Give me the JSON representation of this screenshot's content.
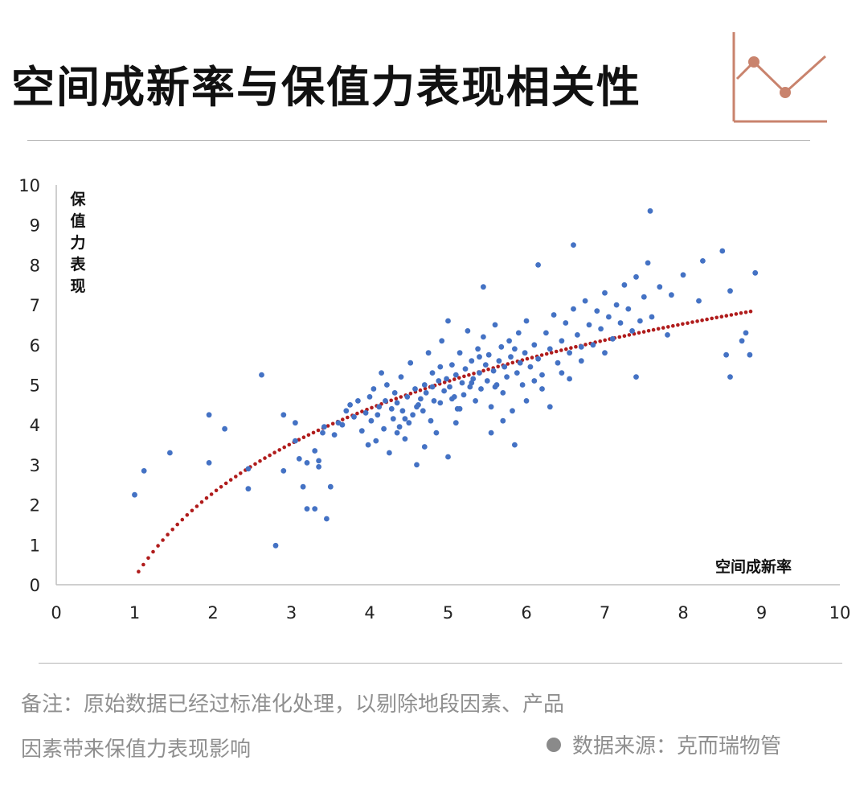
{
  "header": {
    "title": "空间成新率与保值力表现相关性",
    "logo_icon": "line-chart-icon"
  },
  "colors": {
    "points": "#4472c4",
    "trend": "#b01c1c",
    "accent": "#c9836d",
    "muted": "#8f8f8f"
  },
  "footer": {
    "note": "备注：原始数据已经过标准化处理，以剔除地段因素、产品因素带来保值力表现影响",
    "source": "数据来源：克而瑞物管"
  },
  "chart_data": {
    "type": "scatter",
    "title": "空间成新率与保值力表现相关性",
    "xlabel": "空间成新率",
    "ylabel": "保值力表现",
    "xlim": [
      0,
      10
    ],
    "ylim": [
      0,
      10
    ],
    "xticks": [
      "0",
      "1",
      "2",
      "3",
      "4",
      "5",
      "6",
      "7",
      "8",
      "9",
      "10"
    ],
    "yticks": [
      "0",
      "1",
      "2",
      "3",
      "4",
      "5",
      "6",
      "7",
      "8",
      "9",
      "10"
    ],
    "grid": false,
    "legend": "none",
    "trendline": {
      "type": "logarithmic",
      "style": "dotted",
      "x_range": [
        1.05,
        8.9
      ]
    },
    "points": [
      [
        1.0,
        2.25
      ],
      [
        1.12,
        2.85
      ],
      [
        1.45,
        3.3
      ],
      [
        1.95,
        4.25
      ],
      [
        1.95,
        3.05
      ],
      [
        2.15,
        3.9
      ],
      [
        2.45,
        2.4
      ],
      [
        2.45,
        2.9
      ],
      [
        2.62,
        5.25
      ],
      [
        2.8,
        0.98
      ],
      [
        2.9,
        4.25
      ],
      [
        2.9,
        2.85
      ],
      [
        3.05,
        4.05
      ],
      [
        3.05,
        3.6
      ],
      [
        3.1,
        3.15
      ],
      [
        3.15,
        2.45
      ],
      [
        3.2,
        3.05
      ],
      [
        3.2,
        1.9
      ],
      [
        3.3,
        1.9
      ],
      [
        3.3,
        3.35
      ],
      [
        3.35,
        3.1
      ],
      [
        3.35,
        2.95
      ],
      [
        3.4,
        3.8
      ],
      [
        3.42,
        3.95
      ],
      [
        3.45,
        1.65
      ],
      [
        3.5,
        2.45
      ],
      [
        3.55,
        3.75
      ],
      [
        3.6,
        4.05
      ],
      [
        3.65,
        4.0
      ],
      [
        3.7,
        4.35
      ],
      [
        3.75,
        4.5
      ],
      [
        3.8,
        4.2
      ],
      [
        3.85,
        4.6
      ],
      [
        3.9,
        3.85
      ],
      [
        3.95,
        4.3
      ],
      [
        3.98,
        3.5
      ],
      [
        4.0,
        4.7
      ],
      [
        4.02,
        4.1
      ],
      [
        4.05,
        4.9
      ],
      [
        4.08,
        3.6
      ],
      [
        4.1,
        4.25
      ],
      [
        4.12,
        4.45
      ],
      [
        4.15,
        5.3
      ],
      [
        4.18,
        3.9
      ],
      [
        4.2,
        4.6
      ],
      [
        4.22,
        5.0
      ],
      [
        4.25,
        3.3
      ],
      [
        4.28,
        4.4
      ],
      [
        4.3,
        4.15
      ],
      [
        4.32,
        4.8
      ],
      [
        4.35,
        4.55
      ],
      [
        4.38,
        3.95
      ],
      [
        4.4,
        5.2
      ],
      [
        4.42,
        4.35
      ],
      [
        4.45,
        3.65
      ],
      [
        4.48,
        4.7
      ],
      [
        4.5,
        4.05
      ],
      [
        4.52,
        5.55
      ],
      [
        4.55,
        4.25
      ],
      [
        4.58,
        4.9
      ],
      [
        4.6,
        3.0
      ],
      [
        4.62,
        4.5
      ],
      [
        4.65,
        4.65
      ],
      [
        4.68,
        4.35
      ],
      [
        4.7,
        5.0
      ],
      [
        4.72,
        4.8
      ],
      [
        4.75,
        5.8
      ],
      [
        4.78,
        4.1
      ],
      [
        4.8,
        5.3
      ],
      [
        4.82,
        4.6
      ],
      [
        4.85,
        3.8
      ],
      [
        4.88,
        5.1
      ],
      [
        4.9,
        4.55
      ],
      [
        4.92,
        6.1
      ],
      [
        4.95,
        4.85
      ],
      [
        4.98,
        5.15
      ],
      [
        5.0,
        3.2
      ],
      [
        5.02,
        4.95
      ],
      [
        5.05,
        5.5
      ],
      [
        5.08,
        4.7
      ],
      [
        5.1,
        5.25
      ],
      [
        5.12,
        4.4
      ],
      [
        5.15,
        5.8
      ],
      [
        5.18,
        5.05
      ],
      [
        5.2,
        4.75
      ],
      [
        5.22,
        5.4
      ],
      [
        5.25,
        6.35
      ],
      [
        5.28,
        4.95
      ],
      [
        5.3,
        5.6
      ],
      [
        5.32,
        5.15
      ],
      [
        5.35,
        4.6
      ],
      [
        5.38,
        5.9
      ],
      [
        5.4,
        5.3
      ],
      [
        5.42,
        4.9
      ],
      [
        5.45,
        6.2
      ],
      [
        5.48,
        5.5
      ],
      [
        5.5,
        5.1
      ],
      [
        5.52,
        5.75
      ],
      [
        5.55,
        4.45
      ],
      [
        5.58,
        5.35
      ],
      [
        5.6,
        6.5
      ],
      [
        5.62,
        5.0
      ],
      [
        5.65,
        5.6
      ],
      [
        5.68,
        5.95
      ],
      [
        5.7,
        4.8
      ],
      [
        5.72,
        5.45
      ],
      [
        5.75,
        5.2
      ],
      [
        5.78,
        6.1
      ],
      [
        5.8,
        5.7
      ],
      [
        5.82,
        4.35
      ],
      [
        5.85,
        5.9
      ],
      [
        5.88,
        5.3
      ],
      [
        5.9,
        6.3
      ],
      [
        5.92,
        5.55
      ],
      [
        5.95,
        5.0
      ],
      [
        5.98,
        5.8
      ],
      [
        6.0,
        6.6
      ],
      [
        6.05,
        5.45
      ],
      [
        6.1,
        6.0
      ],
      [
        6.15,
        5.65
      ],
      [
        6.2,
        5.25
      ],
      [
        6.25,
        6.3
      ],
      [
        6.3,
        5.9
      ],
      [
        6.35,
        6.75
      ],
      [
        6.4,
        5.55
      ],
      [
        6.45,
        6.1
      ],
      [
        6.5,
        6.55
      ],
      [
        6.55,
        5.8
      ],
      [
        6.6,
        6.9
      ],
      [
        6.65,
        6.25
      ],
      [
        6.7,
        5.95
      ],
      [
        6.75,
        7.1
      ],
      [
        6.8,
        6.5
      ],
      [
        6.85,
        6.0
      ],
      [
        6.9,
        6.85
      ],
      [
        6.95,
        6.4
      ],
      [
        7.0,
        7.3
      ],
      [
        7.05,
        6.7
      ],
      [
        7.1,
        6.15
      ],
      [
        7.15,
        7.0
      ],
      [
        7.2,
        6.55
      ],
      [
        7.25,
        7.5
      ],
      [
        7.3,
        6.9
      ],
      [
        7.35,
        6.35
      ],
      [
        7.4,
        7.7
      ],
      [
        7.45,
        6.6
      ],
      [
        7.5,
        7.2
      ],
      [
        7.55,
        8.05
      ],
      [
        7.6,
        6.7
      ],
      [
        7.7,
        7.45
      ],
      [
        7.8,
        6.25
      ],
      [
        7.85,
        7.25
      ],
      [
        8.0,
        7.75
      ],
      [
        8.2,
        7.1
      ],
      [
        8.25,
        8.1
      ],
      [
        8.5,
        8.35
      ],
      [
        8.6,
        7.35
      ],
      [
        8.55,
        5.75
      ],
      [
        8.6,
        5.2
      ],
      [
        8.75,
        6.1
      ],
      [
        8.8,
        6.3
      ],
      [
        8.85,
        5.75
      ],
      [
        8.92,
        7.8
      ],
      [
        6.6,
        8.5
      ],
      [
        7.58,
        9.35
      ],
      [
        6.15,
        8.0
      ],
      [
        5.45,
        7.45
      ],
      [
        5.0,
        6.6
      ],
      [
        4.6,
        4.45
      ],
      [
        4.9,
        5.45
      ],
      [
        5.3,
        5.05
      ],
      [
        5.7,
        4.1
      ],
      [
        6.2,
        4.9
      ],
      [
        6.45,
        5.3
      ],
      [
        6.7,
        5.6
      ],
      [
        5.15,
        4.4
      ],
      [
        4.45,
        4.15
      ],
      [
        4.7,
        3.45
      ],
      [
        5.55,
        3.8
      ],
      [
        6.0,
        4.6
      ],
      [
        5.6,
        4.95
      ],
      [
        4.35,
        3.8
      ],
      [
        4.8,
        4.95
      ],
      [
        5.1,
        4.05
      ],
      [
        6.3,
        4.45
      ],
      [
        7.0,
        5.8
      ],
      [
        7.4,
        5.2
      ],
      [
        5.85,
        3.5
      ],
      [
        5.05,
        4.65
      ],
      [
        5.4,
        5.7
      ],
      [
        6.1,
        5.1
      ],
      [
        6.55,
        5.15
      ]
    ]
  }
}
